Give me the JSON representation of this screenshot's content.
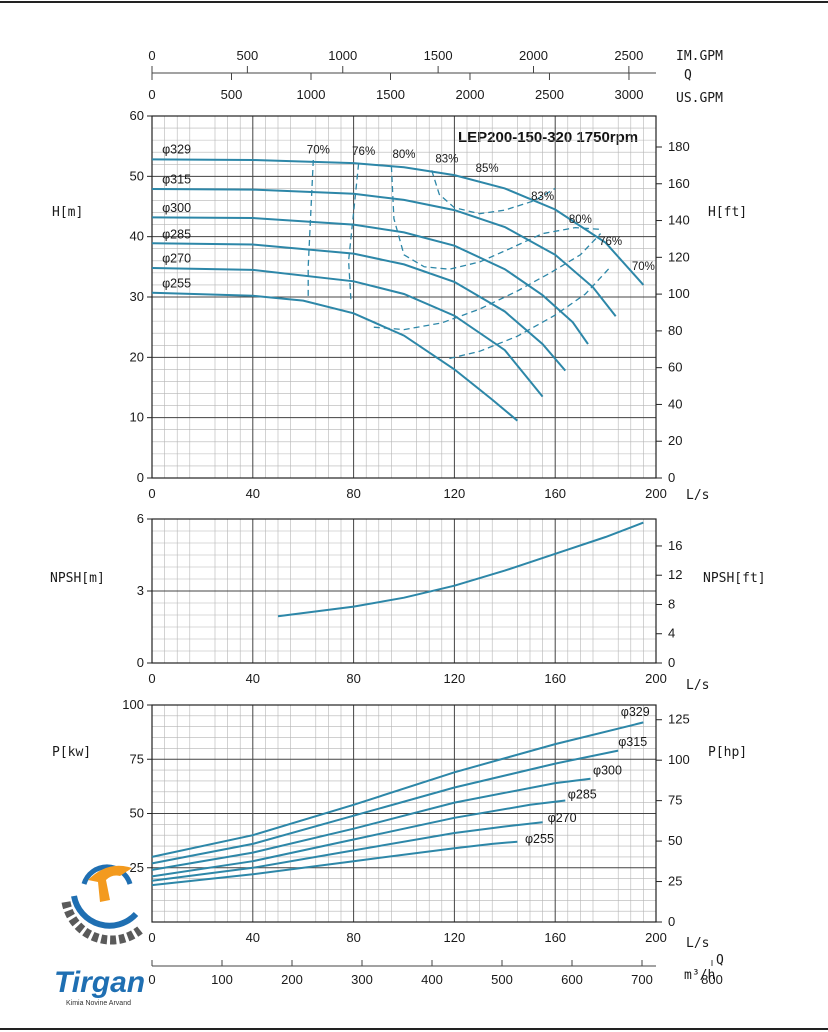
{
  "title": "LEP200-150-320 1750rpm",
  "top_axes": {
    "im_gpm": {
      "label": "IM.GPM",
      "ticks": [
        0,
        500,
        1000,
        1500,
        2000,
        2500
      ]
    },
    "q_label": "Q",
    "us_gpm": {
      "label": "US.GPM",
      "ticks": [
        0,
        500,
        1000,
        1500,
        2000,
        2500,
        3000
      ]
    }
  },
  "bottom_axis": {
    "ls_label": "L/s",
    "m3h_label": "m³/h",
    "q_label": "Q",
    "m3h_ticks": [
      0,
      100,
      200,
      300,
      400,
      500,
      600,
      700,
      800
    ]
  },
  "logo": {
    "name": "Tirgan",
    "subtitle": "Kimia Novine Arvand",
    "colors": {
      "blue": "#1f6fb2",
      "orange": "#f39a1e",
      "gray": "#5a5a5a"
    }
  },
  "colors": {
    "curve": "#2d87a8",
    "grid": "#9a9a9a",
    "axis": "#222222"
  },
  "chart_data": [
    {
      "type": "line",
      "title": "LEP200-150-320 1750rpm",
      "xlabel": "L/s",
      "ylabel": "H[m]",
      "ylabel_right": "H[ft]",
      "xlim": [
        0,
        200
      ],
      "ylim": [
        0,
        60
      ],
      "xticks": [
        0,
        40,
        80,
        120,
        160,
        200
      ],
      "yticks": [
        0,
        10,
        20,
        30,
        40,
        50,
        60
      ],
      "yticks_right": [
        0,
        20,
        40,
        60,
        80,
        100,
        120,
        140,
        160,
        180
      ],
      "grid": true,
      "series": [
        {
          "name": "φ329",
          "x": [
            0,
            40,
            80,
            100,
            120,
            140,
            160,
            180,
            195
          ],
          "y": [
            52.8,
            52.7,
            52.2,
            51.5,
            50.2,
            48.0,
            44.5,
            39.0,
            32.0
          ]
        },
        {
          "name": "φ315",
          "x": [
            0,
            40,
            80,
            100,
            120,
            140,
            160,
            175,
            184
          ],
          "y": [
            47.9,
            47.8,
            47.1,
            46.1,
            44.4,
            41.6,
            37.0,
            31.6,
            26.8
          ]
        },
        {
          "name": "φ300",
          "x": [
            0,
            40,
            80,
            100,
            120,
            140,
            155,
            167,
            173
          ],
          "y": [
            43.2,
            43.1,
            42.0,
            40.7,
            38.5,
            34.6,
            30.3,
            25.8,
            22.2
          ]
        },
        {
          "name": "φ285",
          "x": [
            0,
            40,
            80,
            100,
            120,
            140,
            155,
            164
          ],
          "y": [
            38.9,
            38.7,
            37.2,
            35.4,
            32.5,
            27.6,
            22.2,
            17.8
          ]
        },
        {
          "name": "φ270",
          "x": [
            0,
            40,
            80,
            100,
            120,
            140,
            155
          ],
          "y": [
            34.8,
            34.5,
            32.6,
            30.5,
            26.9,
            21.2,
            13.5
          ]
        },
        {
          "name": "φ255",
          "x": [
            0,
            40,
            60,
            80,
            100,
            120,
            135,
            145
          ],
          "y": [
            30.7,
            30.2,
            29.4,
            27.3,
            23.6,
            18.0,
            13.0,
            9.5
          ]
        }
      ],
      "efficiency": [
        {
          "label": "70%",
          "points": [
            [
              64,
              52.7
            ],
            [
              63,
              44
            ],
            [
              62,
              35
            ],
            [
              62,
              29.5
            ]
          ]
        },
        {
          "label": "76%",
          "points": [
            [
              82,
              52.1
            ],
            [
              80,
              44
            ],
            [
              78,
              36
            ],
            [
              79,
              29
            ]
          ]
        },
        {
          "label": "80%",
          "points": [
            [
              95,
              51.7
            ],
            [
              96,
              43
            ],
            [
              100,
              37
            ],
            [
              108,
              35
            ],
            [
              118,
              34.6
            ],
            [
              130,
              35.8
            ],
            [
              142,
              38
            ],
            [
              155,
              40.5
            ],
            [
              168,
              41.5
            ],
            [
              178,
              41.2
            ]
          ]
        },
        {
          "label": "83%",
          "points": [
            [
              111,
              51
            ],
            [
              114,
              47
            ],
            [
              120,
              44.8
            ],
            [
              130,
              43.8
            ],
            [
              140,
              44.4
            ],
            [
              152,
              46
            ],
            [
              160,
              48
            ]
          ]
        },
        {
          "label": "85%",
          "points": [
            [
              127,
              50.2
            ]
          ]
        },
        {
          "label": "83%",
          "points": [
            [
              88,
              25
            ],
            [
              100,
              24.6
            ],
            [
              115,
              25.7
            ],
            [
              130,
              28
            ],
            [
              145,
              31
            ],
            [
              158,
              34
            ],
            [
              170,
              37
            ],
            [
              178,
              40.5
            ]
          ]
        },
        {
          "label": "76%",
          "points": [
            [
              118,
              19.8
            ],
            [
              130,
              21
            ],
            [
              145,
              23.5
            ],
            [
              160,
              27
            ],
            [
              172,
              30.5
            ],
            [
              182,
              35
            ]
          ]
        },
        {
          "label": "70%",
          "points": [
            [
              195,
              32
            ]
          ]
        }
      ],
      "efficiency_labels": [
        {
          "label": "70%",
          "x": 66,
          "y": 53.8
        },
        {
          "label": "76%",
          "x": 84,
          "y": 53.5
        },
        {
          "label": "80%",
          "x": 100,
          "y": 53.0
        },
        {
          "label": "83%",
          "x": 117,
          "y": 52.3
        },
        {
          "label": "85%",
          "x": 133,
          "y": 50.7
        },
        {
          "label": "83%",
          "x": 155,
          "y": 46.1
        },
        {
          "label": "80%",
          "x": 170,
          "y": 42.3
        },
        {
          "label": "76%",
          "x": 182,
          "y": 38.6
        },
        {
          "label": "70%",
          "x": 195,
          "y": 34.5
        }
      ],
      "series_labels": [
        {
          "name": "φ329",
          "x": 4,
          "y": 53.8
        },
        {
          "name": "φ315",
          "x": 4,
          "y": 48.8
        },
        {
          "name": "φ300",
          "x": 4,
          "y": 44.1
        },
        {
          "name": "φ285",
          "x": 4,
          "y": 39.7
        },
        {
          "name": "φ270",
          "x": 4,
          "y": 35.7
        },
        {
          "name": "φ255",
          "x": 4,
          "y": 31.6
        }
      ]
    },
    {
      "type": "line",
      "xlabel": "L/s",
      "ylabel": "NPSH[m]",
      "ylabel_right": "NPSH[ft]",
      "xlim": [
        0,
        200
      ],
      "ylim": [
        0,
        6
      ],
      "xticks": [
        0,
        40,
        80,
        120,
        160,
        200
      ],
      "yticks": [
        0,
        3,
        6
      ],
      "yticks_right": [
        0,
        4,
        8,
        12,
        16
      ],
      "grid": true,
      "series": [
        {
          "name": "NPSH",
          "x": [
            50,
            80,
            100,
            120,
            140,
            160,
            180,
            195
          ],
          "y": [
            1.95,
            2.35,
            2.72,
            3.22,
            3.85,
            4.55,
            5.25,
            5.85
          ]
        }
      ]
    },
    {
      "type": "line",
      "xlabel": "L/s",
      "ylabel": "P[kw]",
      "ylabel_right": "P[hp]",
      "xlim": [
        0,
        200
      ],
      "ylim": [
        0,
        100
      ],
      "xticks": [
        0,
        40,
        80,
        120,
        160,
        200
      ],
      "yticks": [
        25,
        50,
        75,
        100
      ],
      "yticks_right": [
        0,
        25,
        50,
        75,
        100,
        125
      ],
      "grid": true,
      "series": [
        {
          "name": "φ329",
          "x": [
            0,
            40,
            80,
            120,
            160,
            195
          ],
          "y": [
            30,
            40,
            54,
            69,
            82,
            92
          ]
        },
        {
          "name": "φ315",
          "x": [
            0,
            40,
            80,
            120,
            160,
            185
          ],
          "y": [
            27,
            36,
            49,
            62,
            73,
            79
          ]
        },
        {
          "name": "φ300",
          "x": [
            0,
            40,
            80,
            120,
            160,
            174
          ],
          "y": [
            24,
            32,
            43,
            55,
            64,
            66
          ]
        },
        {
          "name": "φ285",
          "x": [
            0,
            40,
            80,
            120,
            150,
            164
          ],
          "y": [
            21,
            28,
            38,
            48,
            54,
            56
          ]
        },
        {
          "name": "φ270",
          "x": [
            0,
            40,
            80,
            120,
            140,
            155
          ],
          "y": [
            19,
            25,
            33,
            41,
            44,
            46
          ]
        },
        {
          "name": "φ255",
          "x": [
            0,
            40,
            80,
            120,
            135,
            145
          ],
          "y": [
            17,
            22,
            28,
            34,
            36,
            37
          ]
        }
      ],
      "series_labels": [
        {
          "name": "φ329",
          "x": 186,
          "y": 95
        },
        {
          "name": "φ315",
          "x": 185,
          "y": 81
        },
        {
          "name": "φ300",
          "x": 175,
          "y": 68
        },
        {
          "name": "φ285",
          "x": 165,
          "y": 57
        },
        {
          "name": "φ270",
          "x": 157,
          "y": 46
        },
        {
          "name": "φ255",
          "x": 148,
          "y": 36.5
        }
      ]
    }
  ]
}
